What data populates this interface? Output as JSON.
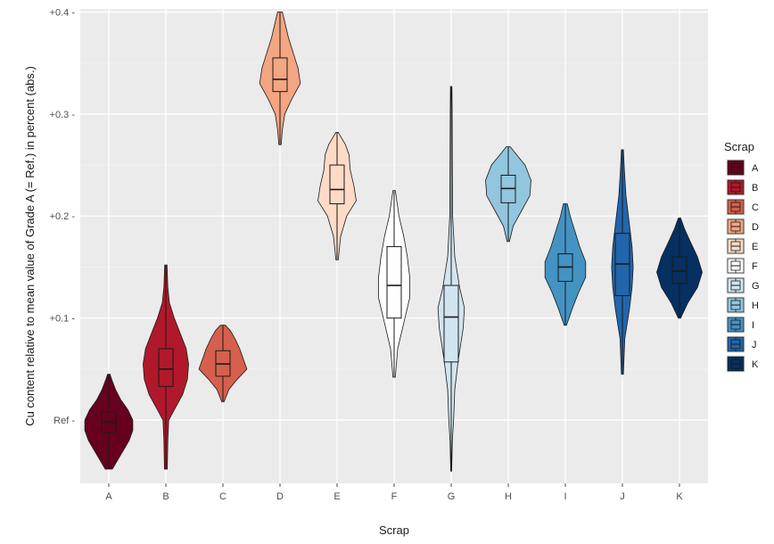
{
  "chart_data": {
    "type": "violin",
    "xlabel": "Scrap",
    "ylabel": "Cu content relative to mean value of Grade A (= Ref.) in percent (abs.)",
    "ylim": [
      -0.062,
      0.403
    ],
    "y_ticks": [
      {
        "value": 0.0,
        "label": "Ref -"
      },
      {
        "value": 0.1,
        "label": "+0.1 -"
      },
      {
        "value": 0.2,
        "label": "+0.2 -"
      },
      {
        "value": 0.3,
        "label": "+0.3 -"
      },
      {
        "value": 0.4,
        "label": "+0.4 -"
      }
    ],
    "categories": [
      "A",
      "B",
      "C",
      "D",
      "E",
      "F",
      "G",
      "H",
      "I",
      "J",
      "K"
    ],
    "grid": true,
    "legend": {
      "title": "Scrap",
      "position": "right"
    },
    "series": [
      {
        "name": "A",
        "color": "#67001f",
        "min": -0.048,
        "max": 0.045,
        "q1": -0.012,
        "median": -0.002,
        "q3": 0.008,
        "density": [
          [
            -0.048,
            0.15
          ],
          [
            -0.04,
            0.35
          ],
          [
            -0.03,
            0.6
          ],
          [
            -0.02,
            0.85
          ],
          [
            -0.01,
            1.0
          ],
          [
            0.0,
            1.0
          ],
          [
            0.01,
            0.8
          ],
          [
            0.02,
            0.5
          ],
          [
            0.03,
            0.28
          ],
          [
            0.04,
            0.12
          ],
          [
            0.045,
            0.05
          ]
        ]
      },
      {
        "name": "B",
        "color": "#b2182b",
        "min": -0.048,
        "max": 0.152,
        "q1": 0.033,
        "median": 0.05,
        "q3": 0.07,
        "density": [
          [
            -0.048,
            0.06
          ],
          [
            -0.02,
            0.08
          ],
          [
            0.0,
            0.12
          ],
          [
            0.01,
            0.35
          ],
          [
            0.025,
            0.7
          ],
          [
            0.04,
            0.9
          ],
          [
            0.055,
            0.95
          ],
          [
            0.07,
            0.85
          ],
          [
            0.085,
            0.6
          ],
          [
            0.1,
            0.35
          ],
          [
            0.115,
            0.15
          ],
          [
            0.13,
            0.08
          ],
          [
            0.152,
            0.05
          ]
        ]
      },
      {
        "name": "C",
        "color": "#d6604d",
        "min": 0.018,
        "max": 0.093,
        "q1": 0.043,
        "median": 0.055,
        "q3": 0.068,
        "density": [
          [
            0.018,
            0.05
          ],
          [
            0.03,
            0.25
          ],
          [
            0.04,
            0.6
          ],
          [
            0.05,
            1.0
          ],
          [
            0.06,
            0.85
          ],
          [
            0.07,
            0.7
          ],
          [
            0.08,
            0.5
          ],
          [
            0.088,
            0.3
          ],
          [
            0.093,
            0.1
          ]
        ]
      },
      {
        "name": "D",
        "color": "#f4a582",
        "min": 0.27,
        "max": 0.4,
        "q1": 0.322,
        "median": 0.334,
        "q3": 0.355,
        "density": [
          [
            0.27,
            0.05
          ],
          [
            0.285,
            0.1
          ],
          [
            0.3,
            0.2
          ],
          [
            0.315,
            0.5
          ],
          [
            0.33,
            0.85
          ],
          [
            0.345,
            0.75
          ],
          [
            0.36,
            0.55
          ],
          [
            0.375,
            0.35
          ],
          [
            0.39,
            0.2
          ],
          [
            0.4,
            0.1
          ]
        ]
      },
      {
        "name": "E",
        "color": "#fddbc7",
        "min": 0.157,
        "max": 0.282,
        "q1": 0.212,
        "median": 0.226,
        "q3": 0.25,
        "density": [
          [
            0.157,
            0.05
          ],
          [
            0.18,
            0.15
          ],
          [
            0.2,
            0.4
          ],
          [
            0.215,
            0.8
          ],
          [
            0.23,
            0.7
          ],
          [
            0.245,
            0.55
          ],
          [
            0.26,
            0.5
          ],
          [
            0.27,
            0.35
          ],
          [
            0.282,
            0.05
          ]
        ]
      },
      {
        "name": "F",
        "color": "#ffffff",
        "min": 0.042,
        "max": 0.225,
        "q1": 0.1,
        "median": 0.132,
        "q3": 0.17,
        "density": [
          [
            0.042,
            0.05
          ],
          [
            0.07,
            0.15
          ],
          [
            0.1,
            0.45
          ],
          [
            0.12,
            0.65
          ],
          [
            0.14,
            0.65
          ],
          [
            0.16,
            0.55
          ],
          [
            0.18,
            0.4
          ],
          [
            0.2,
            0.2
          ],
          [
            0.225,
            0.05
          ]
        ]
      },
      {
        "name": "G",
        "color": "#d1e5f0",
        "min": -0.05,
        "max": 0.327,
        "q1": 0.057,
        "median": 0.101,
        "q3": 0.132,
        "density": [
          [
            -0.05,
            0.02
          ],
          [
            -0.02,
            0.05
          ],
          [
            0.0,
            0.1
          ],
          [
            0.03,
            0.15
          ],
          [
            0.06,
            0.3
          ],
          [
            0.09,
            0.5
          ],
          [
            0.11,
            0.55
          ],
          [
            0.13,
            0.35
          ],
          [
            0.16,
            0.15
          ],
          [
            0.2,
            0.06
          ],
          [
            0.25,
            0.05
          ],
          [
            0.3,
            0.04
          ],
          [
            0.327,
            0.03
          ]
        ]
      },
      {
        "name": "H",
        "color": "#92c5de",
        "min": 0.175,
        "max": 0.268,
        "q1": 0.213,
        "median": 0.227,
        "q3": 0.24,
        "density": [
          [
            0.175,
            0.05
          ],
          [
            0.19,
            0.2
          ],
          [
            0.205,
            0.55
          ],
          [
            0.22,
            0.9
          ],
          [
            0.235,
            0.95
          ],
          [
            0.25,
            0.7
          ],
          [
            0.26,
            0.35
          ],
          [
            0.268,
            0.08
          ]
        ]
      },
      {
        "name": "I",
        "color": "#4393c3",
        "min": 0.093,
        "max": 0.212,
        "q1": 0.136,
        "median": 0.15,
        "q3": 0.163,
        "density": [
          [
            0.093,
            0.05
          ],
          [
            0.11,
            0.3
          ],
          [
            0.125,
            0.55
          ],
          [
            0.14,
            0.85
          ],
          [
            0.155,
            0.85
          ],
          [
            0.17,
            0.6
          ],
          [
            0.185,
            0.4
          ],
          [
            0.2,
            0.2
          ],
          [
            0.212,
            0.08
          ]
        ]
      },
      {
        "name": "J",
        "color": "#2166ac",
        "min": 0.045,
        "max": 0.265,
        "q1": 0.122,
        "median": 0.153,
        "q3": 0.183,
        "density": [
          [
            0.045,
            0.04
          ],
          [
            0.08,
            0.1
          ],
          [
            0.11,
            0.3
          ],
          [
            0.13,
            0.4
          ],
          [
            0.15,
            0.45
          ],
          [
            0.17,
            0.4
          ],
          [
            0.19,
            0.3
          ],
          [
            0.22,
            0.15
          ],
          [
            0.245,
            0.08
          ],
          [
            0.265,
            0.04
          ]
        ]
      },
      {
        "name": "K",
        "color": "#053061",
        "min": 0.1,
        "max": 0.198,
        "q1": 0.134,
        "median": 0.146,
        "q3": 0.16,
        "density": [
          [
            0.1,
            0.05
          ],
          [
            0.115,
            0.35
          ],
          [
            0.13,
            0.75
          ],
          [
            0.145,
            0.95
          ],
          [
            0.16,
            0.75
          ],
          [
            0.175,
            0.45
          ],
          [
            0.188,
            0.2
          ],
          [
            0.198,
            0.05
          ]
        ]
      }
    ]
  }
}
